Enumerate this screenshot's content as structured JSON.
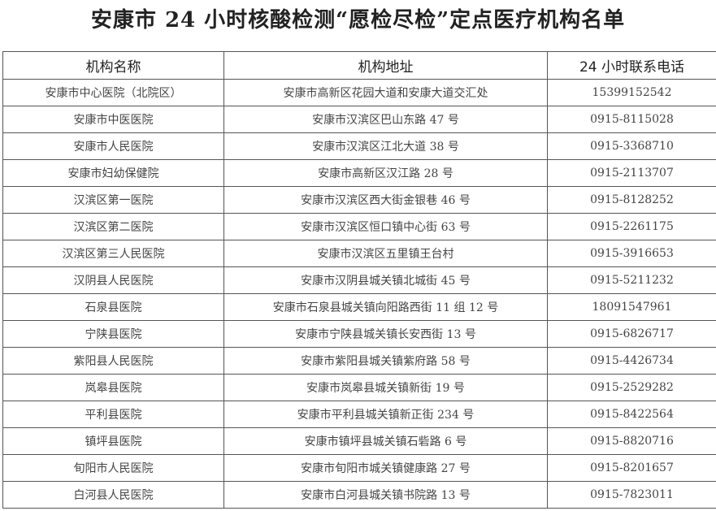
{
  "title": "安康市 24 小时核酸检测“愿检尽检”定点医疗机构名单",
  "table": {
    "headers": [
      "机构名称",
      "机构地址",
      "24 小时联系电话"
    ],
    "rows": [
      [
        "安康市中心医院（北院区）",
        "安康市高新区花园大道和安康大道交汇处",
        "15399152542"
      ],
      [
        "安康市中医医院",
        "安康市汉滨区巴山东路 47 号",
        "0915-8115028"
      ],
      [
        "安康市人民医院",
        "安康市汉滨区江北大道 38 号",
        "0915-3368710"
      ],
      [
        "安康市妇幼保健院",
        "安康市高新区汉江路 28 号",
        "0915-2113707"
      ],
      [
        "汉滨区第一医院",
        "安康市汉滨区西大街金银巷 46 号",
        "0915-8128252"
      ],
      [
        "汉滨区第二医院",
        "安康市汉滨区恒口镇中心街 63 号",
        "0915-2261175"
      ],
      [
        "汉滨区第三人民医院",
        "安康市汉滨区五里镇王台村",
        "0915-3916653"
      ],
      [
        "汉阴县人民医院",
        "安康市汉阴县城关镇北城街 45 号",
        "0915-5211232"
      ],
      [
        "石泉县医院",
        "安康市石泉县城关镇向阳路西街 11 组 12 号",
        "18091547961"
      ],
      [
        "宁陕县医院",
        "安康市宁陕县城关镇长安西街 13 号",
        "0915-6826717"
      ],
      [
        "紫阳县人民医院",
        "安康市紫阳县城关镇紫府路 58 号",
        "0915-4426734"
      ],
      [
        "岚皋县医院",
        "安康市岚皋县城关镇新街 19 号",
        "0915-2529282"
      ],
      [
        "平利县医院",
        "安康市平利县城关镇新正街 234 号",
        "0915-8422564"
      ],
      [
        "镇坪县医院",
        "安康市镇坪县城关镇石砦路 6 号",
        "0915-8820716"
      ],
      [
        "旬阳市人民医院",
        "安康市旬阳市城关镇健康路 27 号",
        "0915-8201657"
      ],
      [
        "白河县人民医院",
        "安康市白河县城关镇书院路 13 号",
        "0915-7823011"
      ]
    ]
  }
}
